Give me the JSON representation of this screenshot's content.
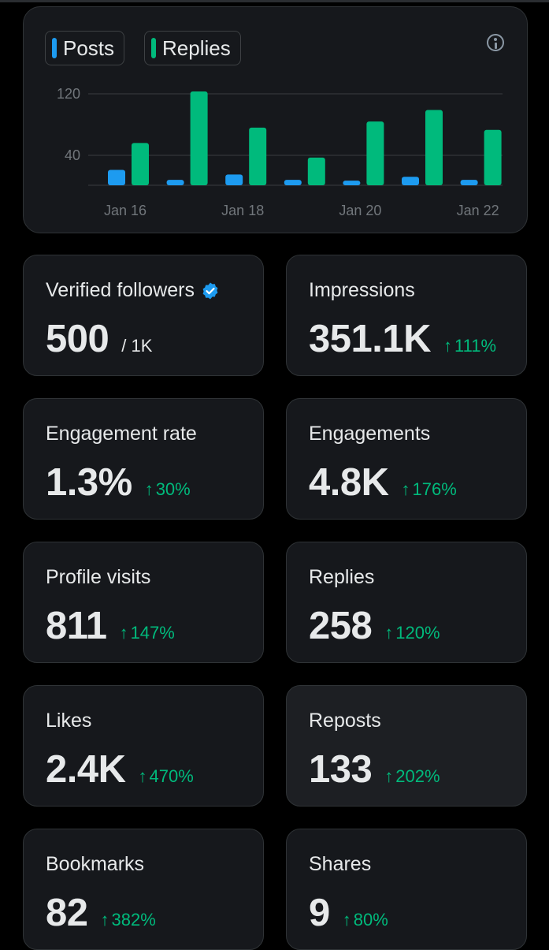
{
  "legend": {
    "posts_label": "Posts",
    "replies_label": "Replies",
    "posts_color": "#1d9bf0",
    "replies_color": "#00ba7c"
  },
  "chart_data": {
    "type": "bar",
    "categories": [
      "Jan 16",
      "Jan 17",
      "Jan 18",
      "Jan 19",
      "Jan 20",
      "Jan 21",
      "Jan 22"
    ],
    "x_tick_labels": [
      "Jan 16",
      "Jan 18",
      "Jan 20",
      "Jan 22"
    ],
    "y_ticks": [
      "120",
      "40"
    ],
    "ylim": [
      0,
      130
    ],
    "grid": true,
    "legend_position": "top-left",
    "series": [
      {
        "name": "Posts",
        "values": [
          20,
          7,
          14,
          7,
          6,
          11,
          7
        ]
      },
      {
        "name": "Replies",
        "values": [
          55,
          122,
          75,
          36,
          83,
          98,
          72
        ]
      }
    ]
  },
  "stats": [
    {
      "label": "Verified followers",
      "value": "500",
      "sub": "/ 1K",
      "verified": true
    },
    {
      "label": "Impressions",
      "value": "351.1K",
      "change": "111%"
    },
    {
      "label": "Engagement rate",
      "value": "1.3%",
      "change": "30%"
    },
    {
      "label": "Engagements",
      "value": "4.8K",
      "change": "176%"
    },
    {
      "label": "Profile visits",
      "value": "811",
      "change": "147%"
    },
    {
      "label": "Replies",
      "value": "258",
      "change": "120%"
    },
    {
      "label": "Likes",
      "value": "2.4K",
      "change": "470%"
    },
    {
      "label": "Reposts",
      "value": "133",
      "change": "202%"
    },
    {
      "label": "Bookmarks",
      "value": "82",
      "change": "382%"
    },
    {
      "label": "Shares",
      "value": "9",
      "change": "80%"
    }
  ],
  "icons": {
    "info": "info-icon",
    "verified": "verified-badge-icon",
    "up_arrow": "arrow-up-icon"
  },
  "arrow_glyph": "↑"
}
